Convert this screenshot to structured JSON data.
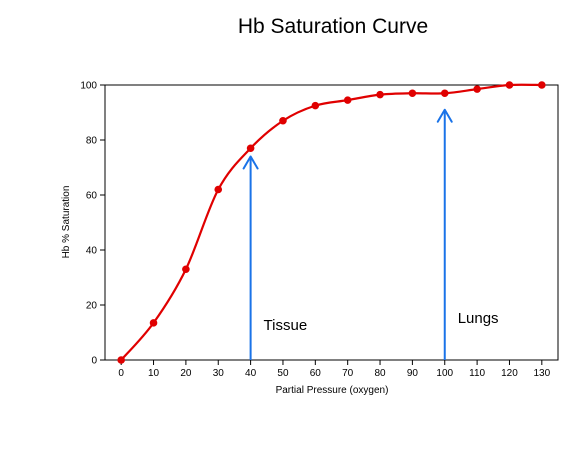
{
  "chart_data": {
    "type": "line",
    "title": "Hb Saturation Curve",
    "xlabel": "Partial Pressure (oxygen)",
    "ylabel": "Hb % Saturation",
    "xlim": [
      -5,
      135
    ],
    "ylim": [
      0,
      100
    ],
    "xticks": [
      0,
      10,
      20,
      30,
      40,
      50,
      60,
      70,
      80,
      90,
      100,
      110,
      120,
      130
    ],
    "yticks": [
      0,
      20,
      40,
      60,
      80,
      100
    ],
    "grid": false,
    "series": [
      {
        "x": [
          0,
          10,
          20,
          30,
          40,
          50,
          60,
          70,
          80,
          90,
          100,
          110,
          120,
          130
        ],
        "values": [
          0,
          13.5,
          33,
          62,
          77,
          87,
          92.5,
          94.5,
          96.5,
          97,
          97,
          98.5,
          100,
          100
        ]
      }
    ],
    "annotations": [
      {
        "id": "tissue",
        "text": "Tissue",
        "x": 40,
        "arrow_top": 74,
        "text_x": 44,
        "text_y": 11
      },
      {
        "id": "lungs",
        "text": "Lungs",
        "x": 100,
        "arrow_top": 91,
        "text_x": 104,
        "text_y": 13.5
      }
    ],
    "colors": {
      "line": "#e00000",
      "marker": "#e00000",
      "arrow": "#1a73e8"
    }
  }
}
